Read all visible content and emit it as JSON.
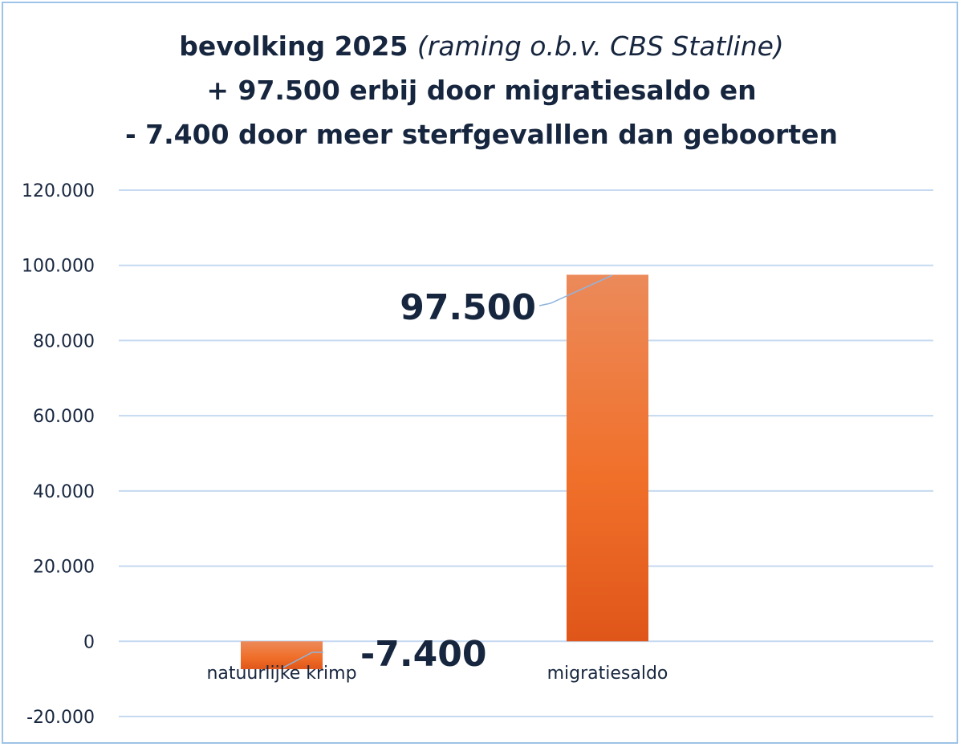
{
  "chart_data": {
    "type": "bar",
    "title": {
      "line1_bold": "bevolking 2025",
      "line1_italic": "(raming o.b.v. CBS Statline)",
      "line2": "+ 97.500 erbij door migratiesaldo en",
      "line3": "- 7.400 door meer sterfgevalllen dan geboorten"
    },
    "categories": [
      "natuurlijke krimp",
      "migratiesaldo"
    ],
    "values": [
      -7400,
      97500
    ],
    "data_labels": [
      "-7.400",
      "97.500"
    ],
    "ylim": [
      -20000,
      120000
    ],
    "yticks": [
      -20000,
      0,
      20000,
      40000,
      60000,
      80000,
      100000,
      120000
    ],
    "ytick_labels": [
      "-20.000",
      "0",
      "20.000",
      "40.000",
      "60.000",
      "80.000",
      "100.000",
      "120.000"
    ],
    "grid": true,
    "colors": {
      "bar_top": "#ec8a5a",
      "bar_mid": "#f0702a",
      "bar_bottom": "#e0561a",
      "grid": "#c5d9f0",
      "text": "#17263f",
      "frame": "#9dc3e6"
    }
  }
}
